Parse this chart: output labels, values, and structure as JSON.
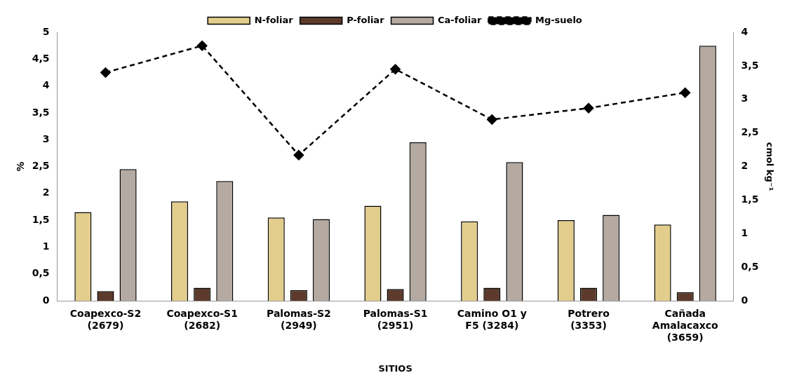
{
  "chart_data": {
    "type": "bar",
    "xlabel": "SITIOS",
    "ylabel": "%",
    "y2label": "cmol kg⁻¹",
    "categories": [
      "Coapexco-S2 (2679)",
      "Coapexco-S1 (2682)",
      "Palomas-S2 (2949)",
      "Palomas-S1 (2951)",
      "Camino O1 y F5 (3284)",
      "Potrero (3353)",
      "Cañada Amalacaxco (3659)"
    ],
    "series": [
      {
        "name": "N-foliar",
        "color": "#e2cd8c",
        "values": [
          1.65,
          1.85,
          1.55,
          1.77,
          1.48,
          1.5,
          1.42
        ]
      },
      {
        "name": "P-foliar",
        "color": "#5c3b2c",
        "values": [
          0.18,
          0.24,
          0.2,
          0.22,
          0.24,
          0.24,
          0.16
        ]
      },
      {
        "name": "Ca-foliar",
        "color": "#b5aaa2",
        "values": [
          2.45,
          2.23,
          1.52,
          2.95,
          2.58,
          1.6,
          4.75
        ]
      },
      {
        "name": "Mg-suelo",
        "type": "line",
        "axis": "y2",
        "color": "#000000",
        "marker": "diamond",
        "line_style": "dashed",
        "values": [
          3.4,
          3.8,
          2.17,
          3.45,
          2.7,
          2.87,
          3.1
        ]
      }
    ],
    "ylim": [
      0,
      5
    ],
    "yticks": [
      0,
      {
        "value": 0.5,
        "label": "0,5"
      },
      1,
      {
        "value": 1.5,
        "label": "1,5"
      },
      2,
      {
        "value": 2.5,
        "label": "2,5"
      },
      3,
      {
        "value": 3.5,
        "label": "3,5"
      },
      4,
      {
        "value": 4.5,
        "label": "4,5"
      },
      5
    ],
    "y2lim": [
      0,
      4
    ],
    "y2ticks": [
      0,
      {
        "value": 0.5,
        "label": "0,5"
      },
      1,
      {
        "value": 1.5,
        "label": "1,5"
      },
      2,
      {
        "value": 2.5,
        "label": "2,5"
      },
      3,
      {
        "value": 3.5,
        "label": "3,5"
      },
      4
    ],
    "grid": false,
    "legend": "top"
  }
}
